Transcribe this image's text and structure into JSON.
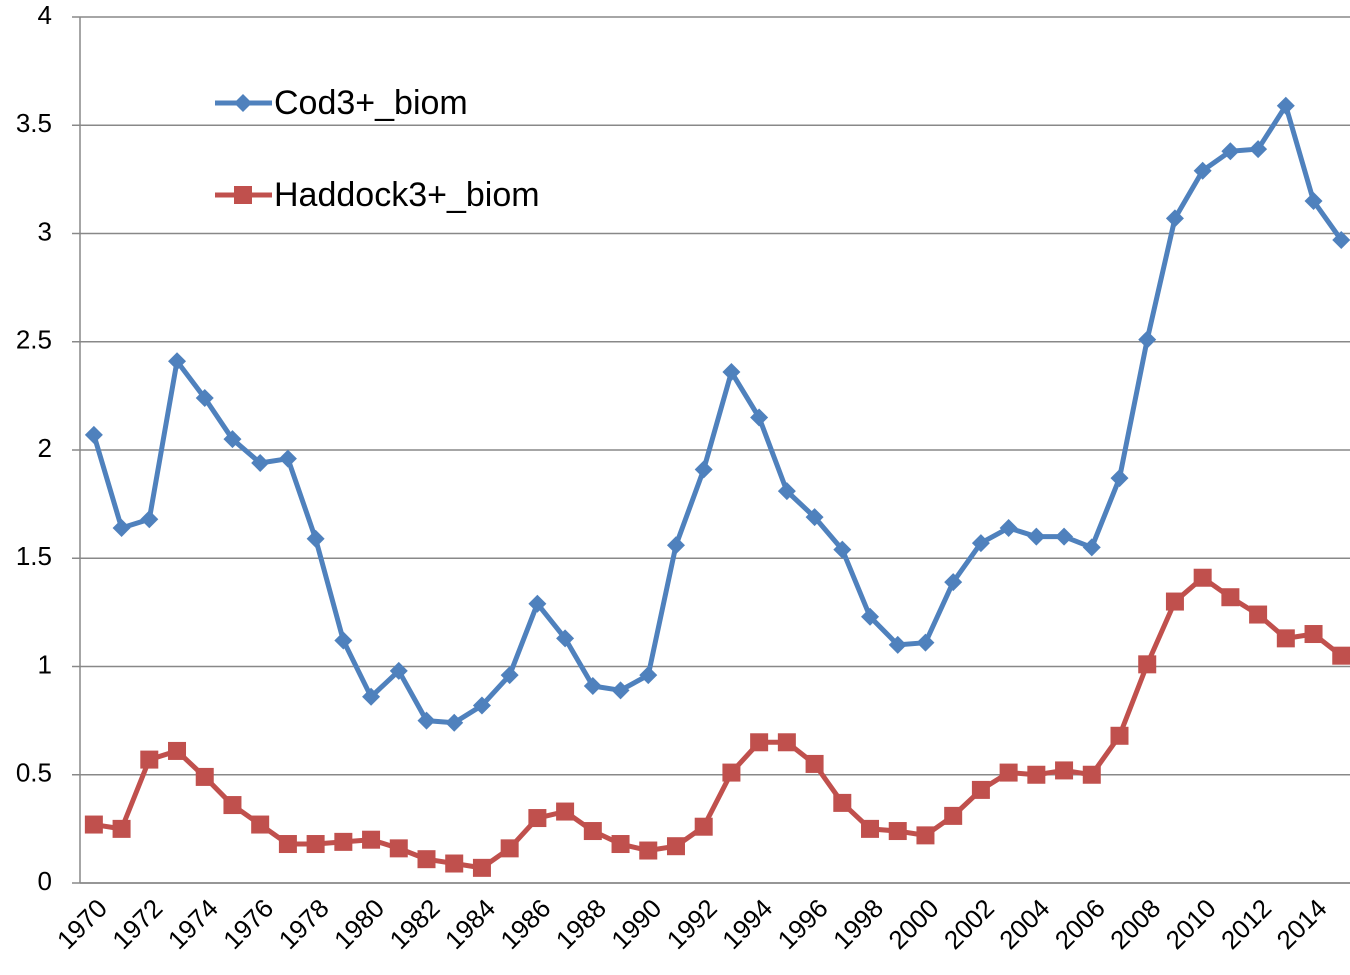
{
  "chart_data": {
    "type": "line",
    "categories": [
      "1970",
      null,
      "1972",
      null,
      "1974",
      null,
      "1976",
      null,
      "1978",
      null,
      "1980",
      null,
      "1982",
      null,
      "1984",
      null,
      "1986",
      null,
      "1988",
      null,
      "1990",
      null,
      "1992",
      null,
      "1994",
      null,
      "1996",
      null,
      "1998",
      null,
      "2000",
      null,
      "2002",
      null,
      "2004",
      null,
      "2006",
      null,
      "2008",
      null,
      "2010",
      null,
      "2012",
      null,
      "2014",
      null
    ],
    "series": [
      {
        "name": "Cod3+_biom",
        "color": "#4f81bd",
        "marker": "diamond",
        "values": [
          2.07,
          1.64,
          1.68,
          2.41,
          2.24,
          2.05,
          1.94,
          1.96,
          1.59,
          1.12,
          0.86,
          0.98,
          0.75,
          0.74,
          0.82,
          0.96,
          1.29,
          1.13,
          0.91,
          0.89,
          0.96,
          1.56,
          1.91,
          2.36,
          2.15,
          1.81,
          1.69,
          1.54,
          1.23,
          1.1,
          1.11,
          1.39,
          1.57,
          1.64,
          1.6,
          1.6,
          1.55,
          1.87,
          2.51,
          3.07,
          3.29,
          3.38,
          3.39,
          3.59,
          3.15,
          2.97
        ]
      },
      {
        "name": "Haddock3+_biom",
        "color": "#c0504d",
        "marker": "square",
        "values": [
          0.27,
          0.25,
          0.57,
          0.61,
          0.49,
          0.36,
          0.27,
          0.18,
          0.18,
          0.19,
          0.2,
          0.16,
          0.11,
          0.09,
          0.07,
          0.16,
          0.3,
          0.33,
          0.24,
          0.18,
          0.15,
          0.17,
          0.26,
          0.51,
          0.65,
          0.65,
          0.55,
          0.37,
          0.25,
          0.24,
          0.22,
          0.31,
          0.43,
          0.51,
          0.5,
          0.52,
          0.5,
          0.68,
          1.01,
          1.3,
          1.41,
          1.32,
          1.24,
          1.13,
          1.15,
          1.05
        ]
      }
    ],
    "ylim": [
      0,
      4
    ],
    "yticks": [
      0,
      0.5,
      1,
      1.5,
      2,
      2.5,
      3,
      3.5,
      4
    ],
    "grid": true,
    "legend": "upper left"
  }
}
